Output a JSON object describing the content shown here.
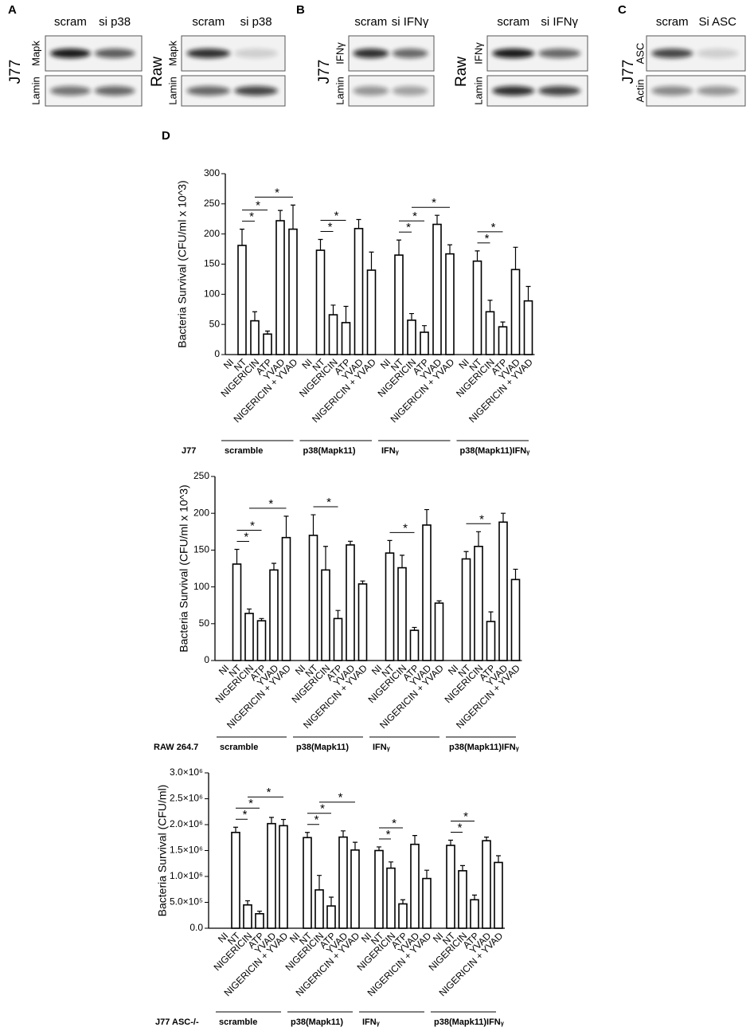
{
  "panels": {
    "A": {
      "letter": "A",
      "blots": [
        {
          "cell": "J77",
          "lanes": [
            "scram",
            "si p38"
          ],
          "rows": [
            "Mapk",
            "Lamin"
          ]
        },
        {
          "cell": "Raw",
          "lanes": [
            "scram",
            "si p38"
          ],
          "rows": [
            "Mapk",
            "Lamin"
          ]
        }
      ]
    },
    "B": {
      "letter": "B",
      "blots": [
        {
          "cell": "J77",
          "lanes": [
            "scram",
            "si IFNγ"
          ],
          "rows": [
            "IFNγ",
            "Lamin"
          ]
        },
        {
          "cell": "Raw",
          "lanes": [
            "scram",
            "si IFNγ"
          ],
          "rows": [
            "IFNγ",
            "Lamin"
          ]
        }
      ]
    },
    "C": {
      "letter": "C",
      "blots": [
        {
          "cell": "J77",
          "lanes": [
            "scram",
            "Si ASC"
          ],
          "rows": [
            "ASC",
            "Actin"
          ]
        }
      ]
    },
    "D": {
      "letter": "D"
    }
  },
  "chart_data": [
    {
      "type": "bar",
      "ylabel": "Bacteria Survival (CFU/ml x 10^3)",
      "cell_line": "J77",
      "color": "#000000",
      "fill": "#ffffff",
      "groups": [
        "scramble",
        "p38(Mapk11)",
        "IFNᵧ",
        "p38(Mapk11)IFNᵧ"
      ],
      "categories": [
        "NI",
        "NT",
        "NIGERICIN",
        "ATP",
        "YVAD",
        "NIGERICIN + YVAD",
        "NI",
        "NT",
        "NIGERICIN",
        "ATP",
        "YVAD",
        "NIGERICIN + YVAD",
        "NI",
        "NT",
        "NIGERICIN",
        "ATP",
        "YVAD",
        "NIGERICIN + YVAD",
        "NI",
        "NT",
        "NIGERICIN",
        "ATP",
        "YVAD",
        "NIGERICIN + YVAD"
      ],
      "values": [
        0,
        181,
        56,
        34,
        222,
        208,
        0,
        173,
        66,
        53,
        209,
        140,
        0,
        165,
        57,
        37,
        216,
        167,
        0,
        155,
        71,
        46,
        141,
        89
      ],
      "errors": [
        null,
        27,
        15,
        5,
        17,
        40,
        null,
        18,
        16,
        27,
        15,
        30,
        null,
        25,
        11,
        11,
        15,
        15,
        null,
        17,
        19,
        8,
        37,
        24
      ],
      "ylim": [
        0,
        300
      ],
      "yticks": [
        0,
        50,
        100,
        150,
        200,
        250,
        300
      ],
      "significance": [
        {
          "from": 1,
          "to": 2,
          "label": "*"
        },
        {
          "from": 1,
          "to": 3,
          "label": "*"
        },
        {
          "from": 2,
          "to": 5,
          "label": "*"
        },
        {
          "from": 7,
          "to": 8,
          "label": "*"
        },
        {
          "from": 7,
          "to": 9,
          "label": "*"
        },
        {
          "from": 13,
          "to": 14,
          "label": "*"
        },
        {
          "from": 13,
          "to": 15,
          "label": "*"
        },
        {
          "from": 14,
          "to": 17,
          "label": "*"
        },
        {
          "from": 19,
          "to": 20,
          "label": "*"
        },
        {
          "from": 19,
          "to": 21,
          "label": "*"
        }
      ]
    },
    {
      "type": "bar",
      "ylabel": "Bacteria Survival (CFU/ml x 10^3)",
      "cell_line": "RAW 264.7",
      "color": "#000000",
      "fill": "#ffffff",
      "groups": [
        "scramble",
        "p38(Mapk11)",
        "IFNᵧ",
        "p38(Mapk11)IFNᵧ"
      ],
      "categories": [
        "NI",
        "NT",
        "NIGERICIN",
        "ATP",
        "YVAD",
        "NIGERICIN + YVAD",
        "NI",
        "NT",
        "NIGERICIN",
        "ATP",
        "YVAD",
        "NIGERICIN + YVAD",
        "NI",
        "NT",
        "NIGERICIN",
        "ATP",
        "YVAD",
        "NIGERICIN + YVAD",
        "NI",
        "NT",
        "NIGERICIN",
        "ATP",
        "YVAD",
        "NIGERICIN + YVAD"
      ],
      "values": [
        0,
        131,
        64,
        54,
        123,
        167,
        0,
        170,
        123,
        57,
        157,
        104,
        0,
        146,
        126,
        41,
        184,
        78,
        0,
        138,
        155,
        53,
        188,
        110
      ],
      "errors": [
        null,
        20,
        6,
        3,
        9,
        29,
        null,
        28,
        32,
        11,
        5,
        4,
        null,
        17,
        17,
        4,
        21,
        3,
        null,
        10,
        20,
        13,
        12,
        14
      ],
      "ylim": [
        0,
        250
      ],
      "yticks": [
        0,
        50,
        100,
        150,
        200,
        250
      ],
      "significance": [
        {
          "from": 1,
          "to": 2,
          "label": "*"
        },
        {
          "from": 1,
          "to": 3,
          "label": "*"
        },
        {
          "from": 2,
          "to": 5,
          "label": "*"
        },
        {
          "from": 7,
          "to": 9,
          "label": "*"
        },
        {
          "from": 13,
          "to": 15,
          "label": "*"
        },
        {
          "from": 19,
          "to": 21,
          "label": "*"
        }
      ]
    },
    {
      "type": "bar",
      "ylabel": "Bacteria Survival (CFU/ml)",
      "cell_line": "J77 ASC-/-",
      "color": "#000000",
      "fill": "#ffffff",
      "groups": [
        "scramble",
        "p38(Mapk11)",
        "IFNᵧ",
        "p38(Mapk11)IFNᵧ"
      ],
      "categories": [
        "NI",
        "NT",
        "NIGERICIN",
        "ATP",
        "YVAD",
        "NIGERICIN + YVAD",
        "NI",
        "NT",
        "NIGERICIN",
        "ATP",
        "YVAD",
        "NIGERICIN + YVAD",
        "NI",
        "NT",
        "NIGERICIN",
        "ATP",
        "YVAD",
        "NIGERICIN + YVAD",
        "NI",
        "NT",
        "NIGERICIN",
        "ATP",
        "YVAD",
        "NIGERICIN + YVAD"
      ],
      "values": [
        0,
        1850000,
        450000,
        280000,
        2020000,
        1980000,
        0,
        1750000,
        740000,
        430000,
        1760000,
        1510000,
        0,
        1500000,
        1160000,
        470000,
        1620000,
        960000,
        0,
        1600000,
        1110000,
        550000,
        1690000,
        1270000
      ],
      "errors": [
        null,
        100000,
        80000,
        50000,
        120000,
        120000,
        null,
        100000,
        280000,
        170000,
        120000,
        150000,
        null,
        70000,
        120000,
        80000,
        170000,
        160000,
        null,
        100000,
        100000,
        90000,
        70000,
        130000
      ],
      "ylim": [
        0,
        3000000
      ],
      "yticks": [
        {
          "value": 0,
          "label": "0.0"
        },
        {
          "value": 500000,
          "label": "5.0×10⁵"
        },
        {
          "value": 1000000,
          "label": "1.0×10⁶"
        },
        {
          "value": 1500000,
          "label": "1.5×10⁶"
        },
        {
          "value": 2000000,
          "label": "2.0×10⁶"
        },
        {
          "value": 2500000,
          "label": "2.5×10⁶"
        },
        {
          "value": 3000000,
          "label": "3.0×10⁶"
        }
      ],
      "significance": [
        {
          "from": 1,
          "to": 2,
          "label": "*"
        },
        {
          "from": 1,
          "to": 3,
          "label": "*"
        },
        {
          "from": 2,
          "to": 5,
          "label": "*"
        },
        {
          "from": 7,
          "to": 8,
          "label": "*"
        },
        {
          "from": 7,
          "to": 9,
          "label": "*"
        },
        {
          "from": 8,
          "to": 11,
          "label": "*"
        },
        {
          "from": 13,
          "to": 14,
          "label": "*"
        },
        {
          "from": 13,
          "to": 15,
          "label": "*"
        },
        {
          "from": 19,
          "to": 20,
          "label": "*"
        },
        {
          "from": 19,
          "to": 21,
          "label": "*"
        }
      ]
    }
  ]
}
